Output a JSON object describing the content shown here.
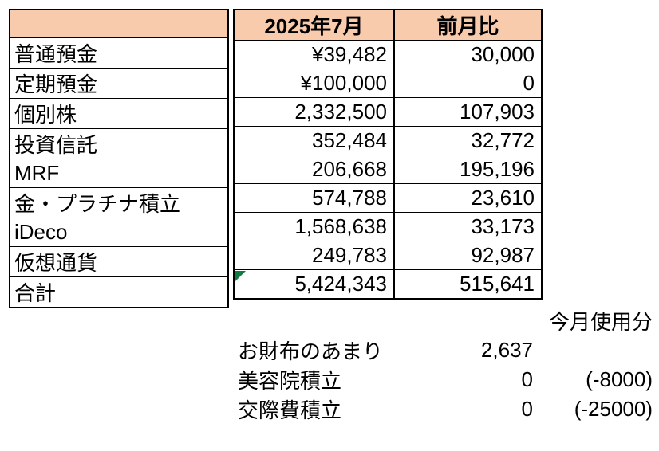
{
  "colors": {
    "header_fill": "#F8CBAD",
    "border": "#000000",
    "text": "#000000",
    "error_green": "#107C41",
    "bg": "#FFFFFF"
  },
  "table": {
    "corner_header": "",
    "columns": [
      "2025年7月",
      "前月比"
    ],
    "rows": [
      {
        "label": "普通預金",
        "value": "¥39,482",
        "diff": "30,000"
      },
      {
        "label": "定期預金",
        "value": "¥100,000",
        "diff": "0"
      },
      {
        "label": "個別株",
        "value": "2,332,500",
        "diff": "107,903"
      },
      {
        "label": "投資信託",
        "value": "352,484",
        "diff": "32,772"
      },
      {
        "label": "MRF",
        "value": "206,668",
        "diff": "195,196"
      },
      {
        "label": "金・プラチナ積立",
        "value": "574,788",
        "diff": "23,610"
      },
      {
        "label": "iDeco",
        "value": "1,568,638",
        "diff": "33,173"
      },
      {
        "label": "仮想通貨",
        "value": "249,783",
        "diff": "92,987"
      },
      {
        "label": "合計",
        "value": "5,424,343",
        "diff": "515,641"
      }
    ]
  },
  "summary": {
    "header": "今月使用分",
    "rows": [
      {
        "label": "お財布のあまり",
        "value": "2,637",
        "note": ""
      },
      {
        "label": "美容院積立",
        "value": "0",
        "note": "(-8000)"
      },
      {
        "label": "交際費積立",
        "value": "0",
        "note": "(-25000)"
      }
    ]
  }
}
